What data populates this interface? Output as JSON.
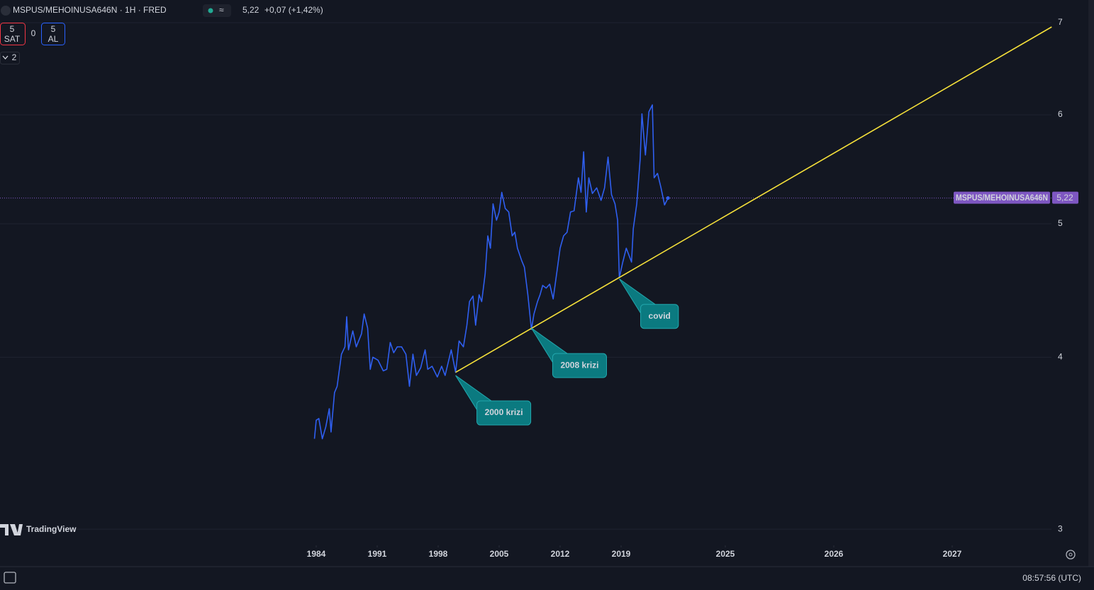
{
  "toolbar": {
    "symbol": "MSPUS/MEHOINUSA646N · 1H · FRED",
    "price": "5,22",
    "change": "+0,07 (+1,42%)",
    "sell_count": "5",
    "sell_label": "SAT",
    "spread": "0",
    "buy_count": "5",
    "buy_label": "AL",
    "indicators_count": "2",
    "watermark": "TradingView",
    "clock": "08:57:56 (UTC)"
  },
  "chart_data": {
    "type": "line",
    "log_scale": true,
    "grid": true,
    "ylim": [
      2.92,
      7.27
    ],
    "yticks": [
      3,
      4,
      5,
      6,
      7
    ],
    "xticks": [
      1984,
      1991,
      1998,
      2005,
      2012,
      2019,
      2025,
      2026,
      2027
    ],
    "series": [
      {
        "name": "MSPUS/MEHOINUSA646N",
        "color": "#2f5ff0",
        "x": [
          1983.8,
          1984.0,
          1984.3,
          1984.7,
          1985.1,
          1985.5,
          1985.7,
          1986.1,
          1986.4,
          1986.9,
          1987.3,
          1987.5,
          1987.7,
          1988.2,
          1988.6,
          1989.2,
          1989.5,
          1989.9,
          1990.2,
          1990.5,
          1991.1,
          1991.7,
          1992.1,
          1992.5,
          1992.9,
          1993.3,
          1993.8,
          1994.3,
          1994.7,
          1995.1,
          1995.5,
          1996.0,
          1996.5,
          1996.8,
          1997.3,
          1997.9,
          1998.4,
          1998.8,
          1999.5,
          2000.0,
          2000.4,
          2000.9,
          2001.3,
          2001.6,
          2002.0,
          2002.3,
          2002.7,
          2003.0,
          2003.4,
          2003.7,
          2004.0,
          2004.3,
          2004.7,
          2005.0,
          2005.3,
          2005.7,
          2006.1,
          2006.5,
          2006.8,
          2007.1,
          2007.6,
          2007.9,
          2008.3,
          2008.7,
          2009.0,
          2009.4,
          2009.7,
          2010.0,
          2010.4,
          2010.8,
          2011.2,
          2011.6,
          2012.0,
          2012.4,
          2012.8,
          2013.2,
          2013.6,
          2014.1,
          2014.4,
          2014.7,
          2015.0,
          2015.3,
          2015.7,
          2016.2,
          2016.7,
          2017.1,
          2017.5,
          2017.9,
          2018.3,
          2018.6,
          2018.8,
          2019.1,
          2019.3,
          2019.6,
          2019.7,
          2019.9,
          2020.1,
          2020.2,
          2020.4,
          2020.6,
          2020.8,
          2020.9,
          2021.1,
          2021.3,
          2021.5,
          2021.7
        ],
        "values": [
          3.49,
          3.6,
          3.61,
          3.49,
          3.56,
          3.67,
          3.53,
          3.77,
          3.81,
          4.02,
          4.07,
          4.28,
          4.05,
          4.18,
          4.07,
          4.16,
          4.3,
          4.2,
          3.92,
          4.0,
          3.98,
          3.91,
          3.92,
          4.1,
          4.03,
          4.07,
          4.07,
          4.02,
          3.81,
          4.02,
          3.88,
          3.93,
          4.05,
          3.92,
          3.94,
          3.87,
          3.94,
          3.88,
          4.05,
          3.9,
          4.11,
          4.07,
          4.22,
          4.39,
          4.43,
          4.22,
          4.44,
          4.39,
          4.6,
          4.9,
          4.8,
          5.17,
          5.03,
          5.1,
          5.27,
          5.13,
          5.1,
          4.9,
          4.93,
          4.8,
          4.7,
          4.65,
          4.44,
          4.19,
          4.3,
          4.39,
          4.44,
          4.51,
          4.49,
          4.52,
          4.41,
          4.6,
          4.8,
          4.9,
          4.93,
          5.1,
          5.11,
          5.4,
          5.27,
          5.64,
          5.1,
          5.4,
          5.26,
          5.31,
          5.2,
          5.31,
          5.59,
          5.25,
          5.17,
          5.03,
          4.57,
          4.69,
          4.8,
          4.69,
          4.96,
          5.17,
          5.57,
          6.01,
          5.61,
          6.03,
          6.1,
          5.4,
          5.44,
          5.31,
          5.16,
          5.22
        ]
      }
    ],
    "last_value": {
      "value": 5.22,
      "label": "5,22"
    },
    "trend_line": {
      "color": "#f5e03a",
      "x": [
        2000.0,
        2027.84
      ],
      "values": [
        3.9,
        6.95
      ]
    },
    "annotations": [
      {
        "text": "2000 krizi",
        "x": 2000.0,
        "y": 3.88
      },
      {
        "text": "2008 krizi",
        "x": 2008.7,
        "y": 4.2
      },
      {
        "text": "covid",
        "x": 2018.8,
        "y": 4.56
      }
    ]
  }
}
